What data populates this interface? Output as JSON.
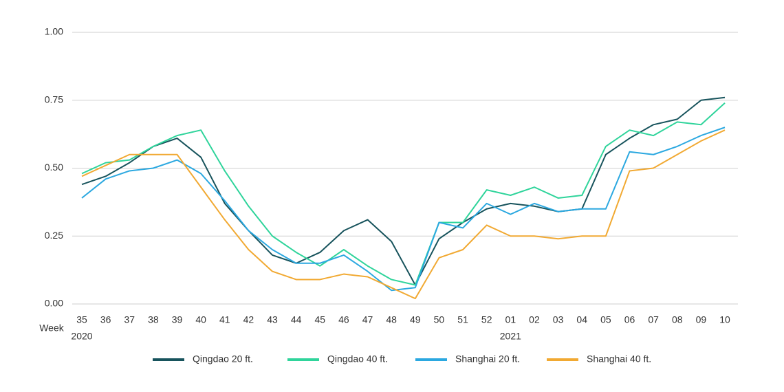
{
  "chart_data": {
    "type": "line",
    "x_label": "Week",
    "year_labels": [
      "2020",
      "2021"
    ],
    "categories": [
      "35",
      "36",
      "37",
      "38",
      "39",
      "40",
      "41",
      "42",
      "43",
      "44",
      "45",
      "46",
      "47",
      "48",
      "49",
      "50",
      "51",
      "52",
      "01",
      "02",
      "03",
      "04",
      "05",
      "06",
      "07",
      "08",
      "09",
      "10"
    ],
    "series": [
      {
        "name": "Qingdao 20 ft.",
        "color": "#17535c",
        "values": [
          0.44,
          0.47,
          0.52,
          0.58,
          0.61,
          0.54,
          0.37,
          0.27,
          0.18,
          0.15,
          0.19,
          0.27,
          0.31,
          0.23,
          0.07,
          0.24,
          0.3,
          0.35,
          0.37,
          0.36,
          0.34,
          0.35,
          0.55,
          0.61,
          0.66,
          0.68,
          0.75,
          0.76
        ]
      },
      {
        "name": "Qingdao 40 ft.",
        "color": "#2fd49b",
        "values": [
          0.48,
          0.52,
          0.53,
          0.58,
          0.62,
          0.64,
          0.49,
          0.36,
          0.25,
          0.19,
          0.14,
          0.2,
          0.14,
          0.09,
          0.07,
          0.3,
          0.3,
          0.42,
          0.4,
          0.43,
          0.39,
          0.4,
          0.58,
          0.64,
          0.62,
          0.67,
          0.66,
          0.74
        ]
      },
      {
        "name": "Shanghai 20 ft.",
        "color": "#2ba8e0",
        "values": [
          0.39,
          0.46,
          0.49,
          0.5,
          0.53,
          0.48,
          0.38,
          0.27,
          0.2,
          0.15,
          0.15,
          0.18,
          0.12,
          0.05,
          0.06,
          0.3,
          0.28,
          0.37,
          0.33,
          0.37,
          0.34,
          0.35,
          0.35,
          0.56,
          0.55,
          0.58,
          0.62,
          0.65
        ]
      },
      {
        "name": "Shanghai 40 ft.",
        "color": "#f1a932",
        "values": [
          0.47,
          0.51,
          0.55,
          0.55,
          0.55,
          0.43,
          0.31,
          0.2,
          0.12,
          0.09,
          0.09,
          0.11,
          0.1,
          0.06,
          0.02,
          0.17,
          0.2,
          0.29,
          0.25,
          0.25,
          0.24,
          0.25,
          0.25,
          0.49,
          0.5,
          0.55,
          0.6,
          0.64
        ]
      }
    ],
    "ylim": [
      0,
      1
    ],
    "yticks": [
      {
        "value": 0,
        "label": "0.00"
      },
      {
        "value": 0.25,
        "label": "0.25"
      },
      {
        "value": 0.5,
        "label": "0.50"
      },
      {
        "value": 0.75,
        "label": "0.75"
      },
      {
        "value": 1,
        "label": "1.00"
      }
    ],
    "grid": true,
    "legend": "bottom"
  }
}
